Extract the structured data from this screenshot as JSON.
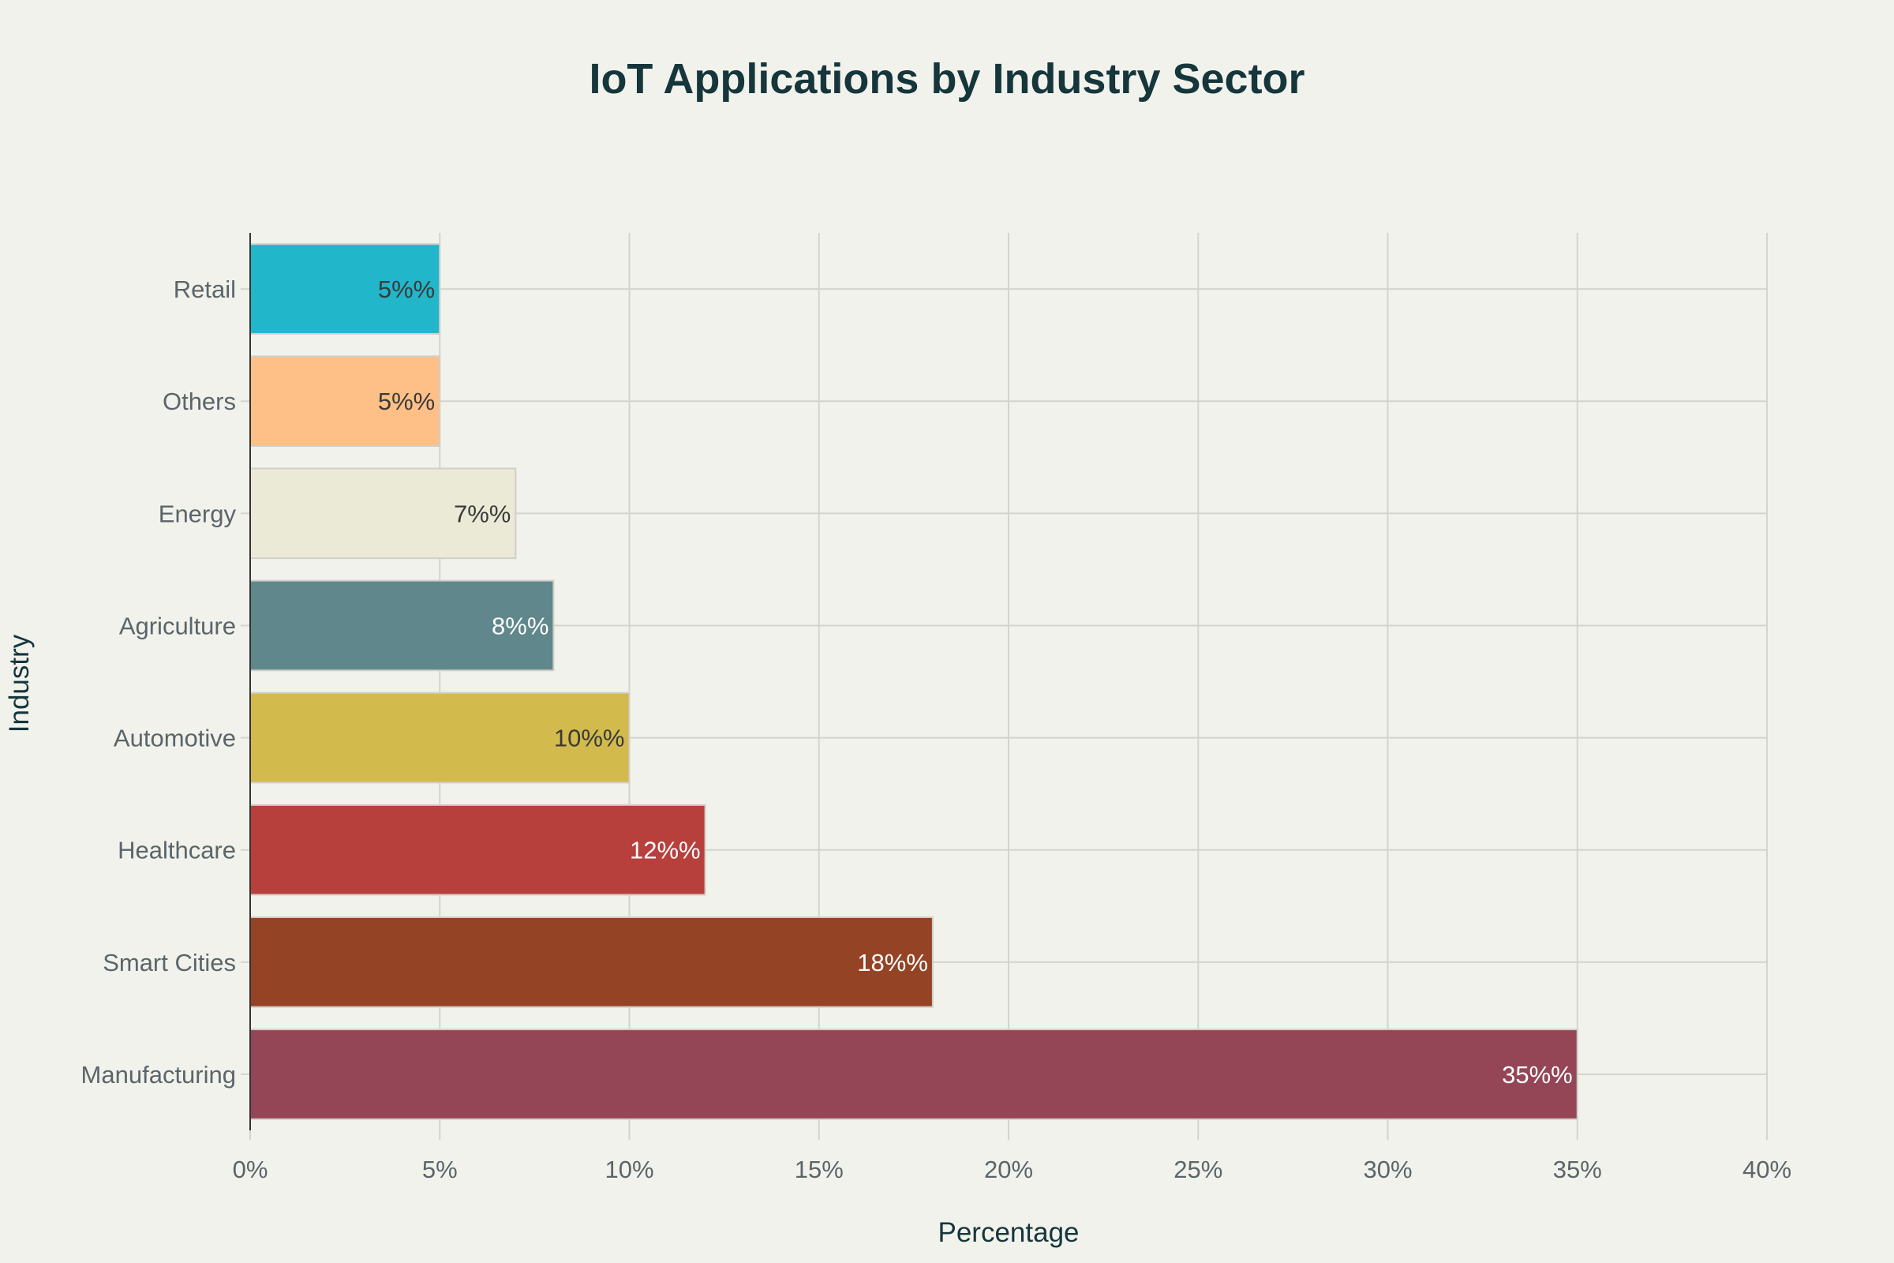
{
  "chart_data": {
    "type": "bar",
    "orientation": "horizontal",
    "title": "IoT Applications by Industry Sector",
    "xlabel": "Percentage",
    "ylabel": "Industry",
    "xlim": [
      0,
      40
    ],
    "x_ticks": [
      "0%",
      "5%",
      "10%",
      "15%",
      "20%",
      "25%",
      "30%",
      "35%",
      "40%"
    ],
    "x_tick_values": [
      0,
      5,
      10,
      15,
      20,
      25,
      30,
      35,
      40
    ],
    "grid": true,
    "categories": [
      "Manufacturing",
      "Smart Cities",
      "Healthcare",
      "Automotive",
      "Agriculture",
      "Energy",
      "Others",
      "Retail"
    ],
    "values": [
      35,
      18,
      12,
      10,
      8,
      7,
      5,
      5
    ],
    "data_labels": [
      "35%%",
      "18%%",
      "12%%",
      "10%%",
      "8%%",
      "7%%",
      "5%%",
      "5%%"
    ],
    "colors": [
      "#944556",
      "#944325",
      "#B7403D",
      "#D3BA4C",
      "#5F878C",
      "#EBEAD6",
      "#FFC087",
      "#21B6CA"
    ],
    "label_colors": [
      "#FFFFFF",
      "#FFFFFF",
      "#FFFFFF",
      "#3A3A3A",
      "#FFFFFF",
      "#3A3A3A",
      "#3A3A3A",
      "#3A3A3A"
    ]
  }
}
